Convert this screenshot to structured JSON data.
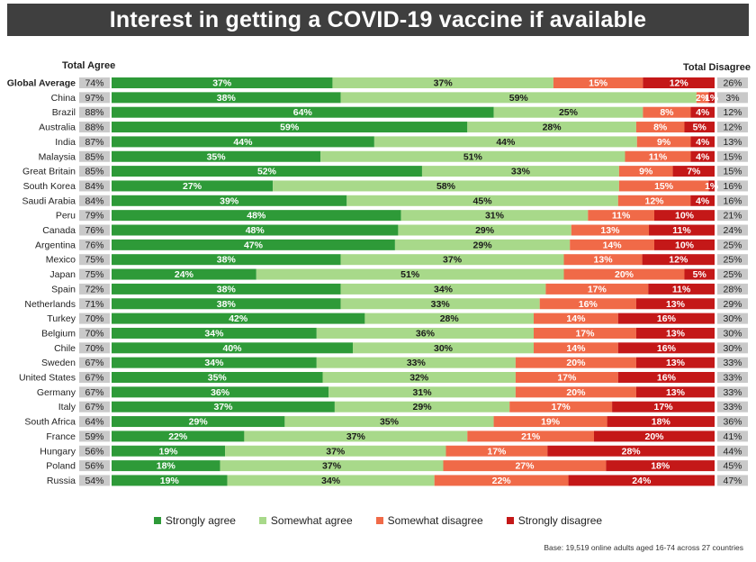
{
  "title": "Interest in getting a COVID-19 vaccine if available",
  "header_left": "Total Agree",
  "header_right": "Total Disagree",
  "footnote": "Base: 19,519 online adults aged 16-74 across 27 countries",
  "colors": {
    "strongly_agree": "#2e9a38",
    "somewhat_agree": "#a8d98a",
    "somewhat_disagree": "#f06a48",
    "strongly_disagree": "#c41818",
    "total_box": "#c9c9c9"
  },
  "legend": [
    {
      "key": "strongly_agree",
      "label": "Strongly agree"
    },
    {
      "key": "somewhat_agree",
      "label": "Somewhat agree"
    },
    {
      "key": "somewhat_disagree",
      "label": "Somewhat disagree"
    },
    {
      "key": "strongly_disagree",
      "label": "Strongly disagree"
    }
  ],
  "chart_data": {
    "type": "bar",
    "orientation": "horizontal",
    "stacked": true,
    "title": "Interest in getting a COVID-19 vaccine if available",
    "categories": [
      "Global Average",
      "China",
      "Brazil",
      "Australia",
      "India",
      "Malaysia",
      "Great Britain",
      "South Korea",
      "Saudi Arabia",
      "Peru",
      "Canada",
      "Argentina",
      "Mexico",
      "Japan",
      "Spain",
      "Netherlands",
      "Turkey",
      "Belgium",
      "Chile",
      "Sweden",
      "United States",
      "Germany",
      "Italy",
      "South Africa",
      "France",
      "Hungary",
      "Poland",
      "Russia"
    ],
    "total_agree": [
      "74%",
      "97%",
      "88%",
      "88%",
      "87%",
      "85%",
      "85%",
      "84%",
      "84%",
      "79%",
      "76%",
      "76%",
      "75%",
      "75%",
      "72%",
      "71%",
      "70%",
      "70%",
      "70%",
      "67%",
      "67%",
      "67%",
      "67%",
      "64%",
      "59%",
      "56%",
      "56%",
      "54%"
    ],
    "total_disagree": [
      "26%",
      "3%",
      "12%",
      "12%",
      "13%",
      "15%",
      "15%",
      "16%",
      "16%",
      "21%",
      "24%",
      "25%",
      "25%",
      "25%",
      "28%",
      "29%",
      "30%",
      "30%",
      "30%",
      "33%",
      "33%",
      "33%",
      "33%",
      "36%",
      "41%",
      "44%",
      "45%",
      "47%"
    ],
    "series": [
      {
        "name": "Strongly agree",
        "key": "strongly_agree",
        "values": [
          37,
          38,
          64,
          59,
          44,
          35,
          52,
          27,
          39,
          48,
          48,
          47,
          38,
          24,
          38,
          38,
          42,
          34,
          40,
          34,
          35,
          36,
          37,
          29,
          22,
          19,
          18,
          19
        ],
        "labels": [
          "37%",
          "38%",
          "64%",
          "59%",
          "44%",
          "35%",
          "52%",
          "27%",
          "39%",
          "48%",
          "48%",
          "47%",
          "38%",
          "24%",
          "38%",
          "38%",
          "42%",
          "34%",
          "40%",
          "34%",
          "35%",
          "36%",
          "37%",
          "29%",
          "22%",
          "19%",
          "18%",
          "19%"
        ]
      },
      {
        "name": "Somewhat agree",
        "key": "somewhat_agree",
        "values": [
          37,
          59,
          25,
          28,
          44,
          51,
          33,
          58,
          45,
          31,
          29,
          29,
          37,
          51,
          34,
          33,
          28,
          36,
          30,
          33,
          32,
          31,
          29,
          35,
          37,
          37,
          37,
          34
        ],
        "labels": [
          "37%",
          "59%",
          "25%",
          "28%",
          "44%",
          "51%",
          "33%",
          "58%",
          "45%",
          "31%",
          "29%",
          "29%",
          "37%",
          "51%",
          "34%",
          "33%",
          "28%",
          "36%",
          "30%",
          "33%",
          "32%",
          "31%",
          "29%",
          "35%",
          "37%",
          "37%",
          "37%",
          "34%"
        ]
      },
      {
        "name": "Somewhat disagree",
        "key": "somewhat_disagree",
        "values": [
          15,
          2,
          8,
          8,
          9,
          11,
          9,
          15,
          12,
          11,
          13,
          14,
          13,
          20,
          17,
          16,
          14,
          17,
          14,
          20,
          17,
          20,
          17,
          19,
          21,
          17,
          27,
          22
        ],
        "labels": [
          "15%",
          "2%",
          "8%",
          "8%",
          "9%",
          "11%",
          "9%",
          "15%",
          "12%",
          "11%",
          "13%",
          "14%",
          "13%",
          "20%",
          "17%",
          "16%",
          "14%",
          "17%",
          "14%",
          "20%",
          "17%",
          "20%",
          "17%",
          "19%",
          "21%",
          "17%",
          "27%",
          "22%"
        ]
      },
      {
        "name": "Strongly disagree",
        "key": "strongly_disagree",
        "values": [
          12,
          1,
          4,
          5,
          4,
          4,
          7,
          1,
          4,
          10,
          11,
          10,
          12,
          5,
          11,
          13,
          16,
          13,
          16,
          13,
          16,
          13,
          17,
          18,
          20,
          28,
          18,
          24
        ],
        "labels": [
          "12%",
          "1%",
          "4%",
          "5%",
          "4%",
          "4%",
          "7%",
          "1%",
          "4%",
          "10%",
          "11%",
          "10%",
          "12%",
          "5%",
          "11%",
          "13%",
          "16%",
          "13%",
          "16%",
          "13%",
          "16%",
          "13%",
          "17%",
          "18%",
          "20%",
          "28%",
          "18%",
          "24%"
        ]
      }
    ],
    "xlim": [
      0,
      100
    ],
    "legend_position": "bottom"
  }
}
